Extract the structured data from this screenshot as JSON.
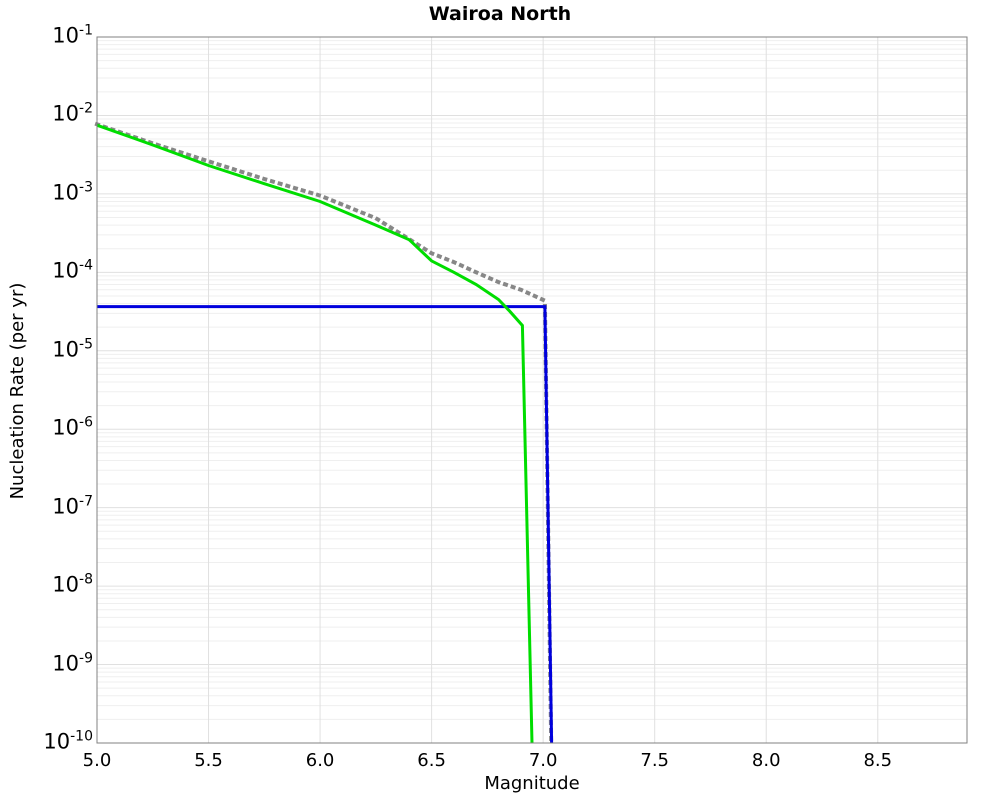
{
  "chart_data": {
    "type": "line",
    "title": "Wairoa North",
    "xlabel": "Magnitude",
    "ylabel": "Nucleation Rate (per yr)",
    "xlim": [
      5.0,
      8.9
    ],
    "y_log10_top": -1,
    "y_log10_bottom": -10,
    "grid": "on",
    "legend_position": "none",
    "x_ticks": [
      5.0,
      5.5,
      6.0,
      6.5,
      7.0,
      7.5,
      8.0,
      8.5
    ],
    "x_tick_labels": [
      "5.0",
      "5.5",
      "6.0",
      "6.5",
      "7.0",
      "7.5",
      "8.0",
      "8.5"
    ],
    "y_tick_exponents": [
      -1,
      -2,
      -3,
      -4,
      -5,
      -6,
      -7,
      -8,
      -9,
      -10
    ],
    "series": [
      {
        "name": "gray-dotted-tapered-curve",
        "style": "dotted",
        "color": "#878787",
        "width": 4,
        "points": [
          [
            5.0,
            0.0077
          ],
          [
            5.25,
            0.0044
          ],
          [
            5.5,
            0.0026
          ],
          [
            5.75,
            0.00155
          ],
          [
            6.0,
            0.00095
          ],
          [
            6.25,
            0.00049
          ],
          [
            6.5,
            0.000175
          ],
          [
            6.6,
            0.000135
          ],
          [
            6.7,
            0.0001
          ],
          [
            6.8,
            7.5e-05
          ],
          [
            6.9,
            6e-05
          ],
          [
            7.0,
            4.45e-05
          ],
          [
            7.008,
            4.2e-05
          ],
          [
            7.036,
            1e-10
          ]
        ]
      },
      {
        "name": "blue-characteristic-line",
        "style": "solid",
        "color": "#0000dd",
        "width": 3,
        "points": [
          [
            5.0,
            3.66e-05
          ],
          [
            7.008,
            3.66e-05
          ],
          [
            7.038,
            1e-10
          ]
        ]
      },
      {
        "name": "green-gr-taper-curve",
        "style": "solid",
        "color": "#00dd00",
        "width": 3,
        "points": [
          [
            5.0,
            0.0075
          ],
          [
            5.25,
            0.0042
          ],
          [
            5.5,
            0.0023
          ],
          [
            5.75,
            0.00135
          ],
          [
            6.0,
            0.0008
          ],
          [
            6.25,
            0.0004
          ],
          [
            6.4,
            0.00026
          ],
          [
            6.5,
            0.00014
          ],
          [
            6.6,
            0.0001
          ],
          [
            6.7,
            7e-05
          ],
          [
            6.8,
            4.5e-05
          ],
          [
            6.85,
            3.2e-05
          ],
          [
            6.907,
            2.1e-05
          ],
          [
            6.95,
            1e-10
          ]
        ]
      }
    ]
  }
}
